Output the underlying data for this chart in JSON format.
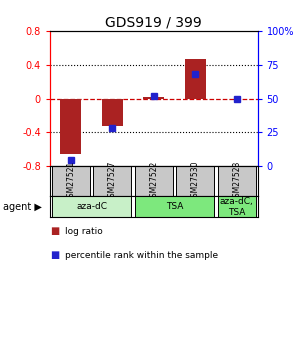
{
  "title": "GDS919 / 399",
  "samples": [
    "GSM27521",
    "GSM27527",
    "GSM27522",
    "GSM27530",
    "GSM27523"
  ],
  "log_ratio": [
    -0.65,
    -0.32,
    0.02,
    0.47,
    0.0
  ],
  "percentile": [
    5,
    28,
    52,
    68,
    50
  ],
  "ylim_left": [
    -0.8,
    0.8
  ],
  "ylim_right": [
    0,
    100
  ],
  "yticks_left": [
    -0.8,
    -0.4,
    0.0,
    0.4,
    0.8
  ],
  "yticks_right": [
    0,
    25,
    50,
    75,
    100
  ],
  "ytick_labels_left": [
    "-0.8",
    "-0.4",
    "0",
    "0.4",
    "0.8"
  ],
  "ytick_labels_right": [
    "0",
    "25",
    "50",
    "75",
    "100%"
  ],
  "agent_groups": [
    {
      "label": "aza-dC",
      "span": [
        0,
        2
      ],
      "color": "#c8f0c8"
    },
    {
      "label": "TSA",
      "span": [
        2,
        4
      ],
      "color": "#7de87d"
    },
    {
      "label": "aza-dC,\nTSA",
      "span": [
        4,
        5
      ],
      "color": "#7de87d"
    }
  ],
  "bar_color": "#aa2222",
  "dot_color": "#2222cc",
  "hline_color": "#cc0000",
  "background_color": "#ffffff",
  "sample_box_color": "#c8c8c8",
  "legend_items": [
    {
      "color": "#aa2222",
      "label": "log ratio"
    },
    {
      "color": "#2222cc",
      "label": "percentile rank within the sample"
    }
  ]
}
